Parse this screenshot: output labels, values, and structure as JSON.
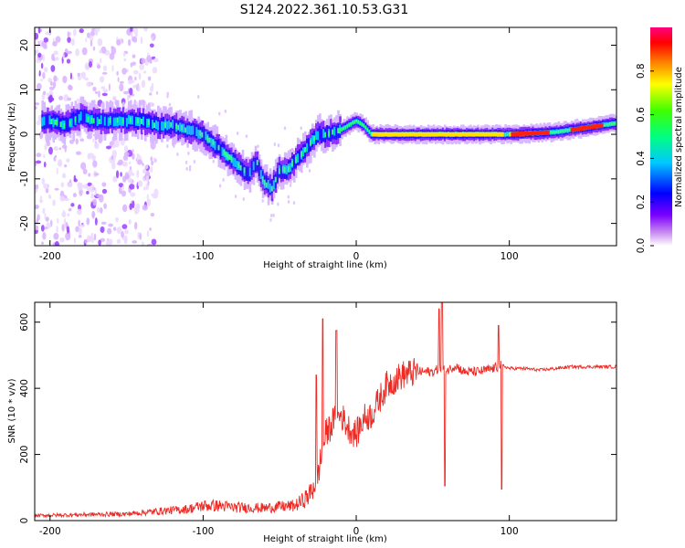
{
  "figure_title": "S124.2022.361.10.53.G31",
  "colors": {
    "snr_line": "#ee2a24",
    "axes": "#000000",
    "colorbar": [
      "#ff00ff",
      "#0000ff",
      "#00ffff",
      "#00ff00",
      "#ffff00",
      "#ff8000",
      "#ff0000",
      "#ff0080"
    ]
  },
  "chart_data": [
    {
      "type": "heatmap",
      "title": "",
      "xlabel": "Height of straight line (km)",
      "ylabel": "Frequency (Hz)",
      "xlim": [
        -210,
        170
      ],
      "ylim": [
        -25,
        24
      ],
      "x_ticks": [
        -200,
        -100,
        0,
        100
      ],
      "y_ticks": [
        -20,
        -10,
        0,
        10,
        20
      ],
      "grid": false,
      "colorbar": {
        "label": "Normalized spectral amplitude",
        "range": [
          0,
          1
        ],
        "ticks": [
          "0.0",
          "0.2",
          "0.4",
          "0.6",
          "0.8"
        ]
      },
      "ridge_center_hz": {
        "x": [
          -200,
          -190,
          -180,
          -170,
          -160,
          -150,
          -140,
          -130,
          -120,
          -110,
          -100,
          -90,
          -80,
          -70,
          -65,
          -60,
          -55,
          -50,
          -45,
          -40,
          -35,
          -30,
          -25,
          -20,
          -10,
          0,
          5,
          10,
          50,
          100,
          130,
          150,
          170
        ],
        "y": [
          3,
          2,
          4,
          3,
          3,
          3,
          3,
          2,
          2,
          1,
          0,
          -3,
          -6,
          -9,
          -6,
          -11,
          -12,
          -8,
          -8,
          -6,
          -4,
          -2,
          0,
          0,
          1,
          3,
          2,
          0,
          0,
          0,
          0.5,
          1.5,
          2.5
        ]
      },
      "noise_region_km": [
        -210,
        -150
      ]
    },
    {
      "type": "line",
      "title": "",
      "xlabel": "Height of straight line (km)",
      "ylabel": "SNR (10 * v/v)",
      "xlim": [
        -210,
        170
      ],
      "ylim": [
        0,
        660
      ],
      "x_ticks": [
        -200,
        -100,
        0,
        100
      ],
      "y_ticks": [
        0,
        200,
        400,
        600
      ],
      "grid": false,
      "series": [
        {
          "values": {
            "x": [
              -210,
              -180,
              -150,
              -130,
              -110,
              -100,
              -90,
              -80,
              -60,
              -50,
              -40,
              -35,
              -30,
              -25,
              -20,
              -15,
              -10,
              -5,
              0,
              5,
              10,
              20,
              30,
              40,
              50,
              55,
              60,
              65,
              70,
              80,
              90,
              95,
              100,
              110,
              120,
              140,
              170
            ],
            "y": [
              15,
              18,
              20,
              28,
              35,
              45,
              45,
              40,
              38,
              42,
              45,
              60,
              80,
              140,
              260,
              300,
              320,
              280,
              260,
              310,
              320,
              410,
              440,
              450,
              450,
              460,
              455,
              470,
              450,
              450,
              460,
              470,
              460,
              460,
              455,
              465,
              465
            ]
          },
          "spikes": {
            "x": [
              -26,
              -22,
              -13,
              54,
              56,
              58,
              93,
              95
            ],
            "y": [
              440,
              610,
              575,
              640,
              660,
              105,
              590,
              95
            ]
          }
        }
      ]
    }
  ]
}
